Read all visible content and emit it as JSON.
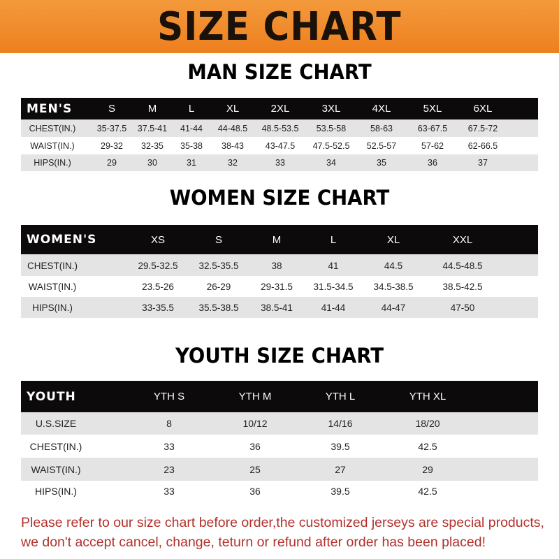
{
  "banner": {
    "title": "SIZE CHART",
    "color": "#ef8a2a"
  },
  "men": {
    "title": "MAN SIZE CHART",
    "header": [
      "MEN'S",
      "S",
      "M",
      "L",
      "XL",
      "2XL",
      "3XL",
      "4XL",
      "5XL",
      "6XL"
    ],
    "rows": [
      [
        "CHEST(IN.)",
        "35-37.5",
        "37.5-41",
        "41-44",
        "44-48.5",
        "48.5-53.5",
        "53.5-58",
        "58-63",
        "63-67.5",
        "67.5-72"
      ],
      [
        "WAIST(IN.)",
        "29-32",
        "32-35",
        "35-38",
        "38-43",
        "43-47.5",
        "47.5-52.5",
        "52.5-57",
        "57-62",
        "62-66.5"
      ],
      [
        "HIPS(IN.)",
        "29",
        "30",
        "31",
        "32",
        "33",
        "34",
        "35",
        "36",
        "37"
      ]
    ]
  },
  "women": {
    "title": "WOMEN SIZE CHART",
    "header": [
      "WOMEN'S",
      "XS",
      "S",
      "M",
      "L",
      "XL",
      "XXL"
    ],
    "rows": [
      [
        "CHEST(IN.)",
        "29.5-32.5",
        "32.5-35.5",
        "38",
        "41",
        "44.5",
        "44.5-48.5"
      ],
      [
        "WAIST(IN.)",
        "23.5-26",
        "26-29",
        "29-31.5",
        "31.5-34.5",
        "34.5-38.5",
        "38.5-42.5"
      ],
      [
        "HIPS(IN.)",
        "33-35.5",
        "35.5-38.5",
        "38.5-41",
        "41-44",
        "44-47",
        "47-50"
      ]
    ]
  },
  "youth": {
    "title": "YOUTH SIZE CHART",
    "header": [
      "YOUTH",
      "YTH S",
      "YTH M",
      "YTH L",
      "YTH XL"
    ],
    "rows": [
      [
        "U.S.SIZE",
        "8",
        "10/12",
        "14/16",
        "18/20"
      ],
      [
        "CHEST(IN.)",
        "33",
        "36",
        "39.5",
        "42.5"
      ],
      [
        "WAIST(IN.)",
        "23",
        "25",
        "27",
        "29"
      ],
      [
        "HIPS(IN.)",
        "33",
        "36",
        "39.5",
        "42.5"
      ]
    ]
  },
  "notice": {
    "line1": "Please refer to our size chart before order,the customized jerseys are special products,",
    "line2": "we don't accept cancel, change, teturn or refund after order has been placed!",
    "color": "#b3312c"
  }
}
